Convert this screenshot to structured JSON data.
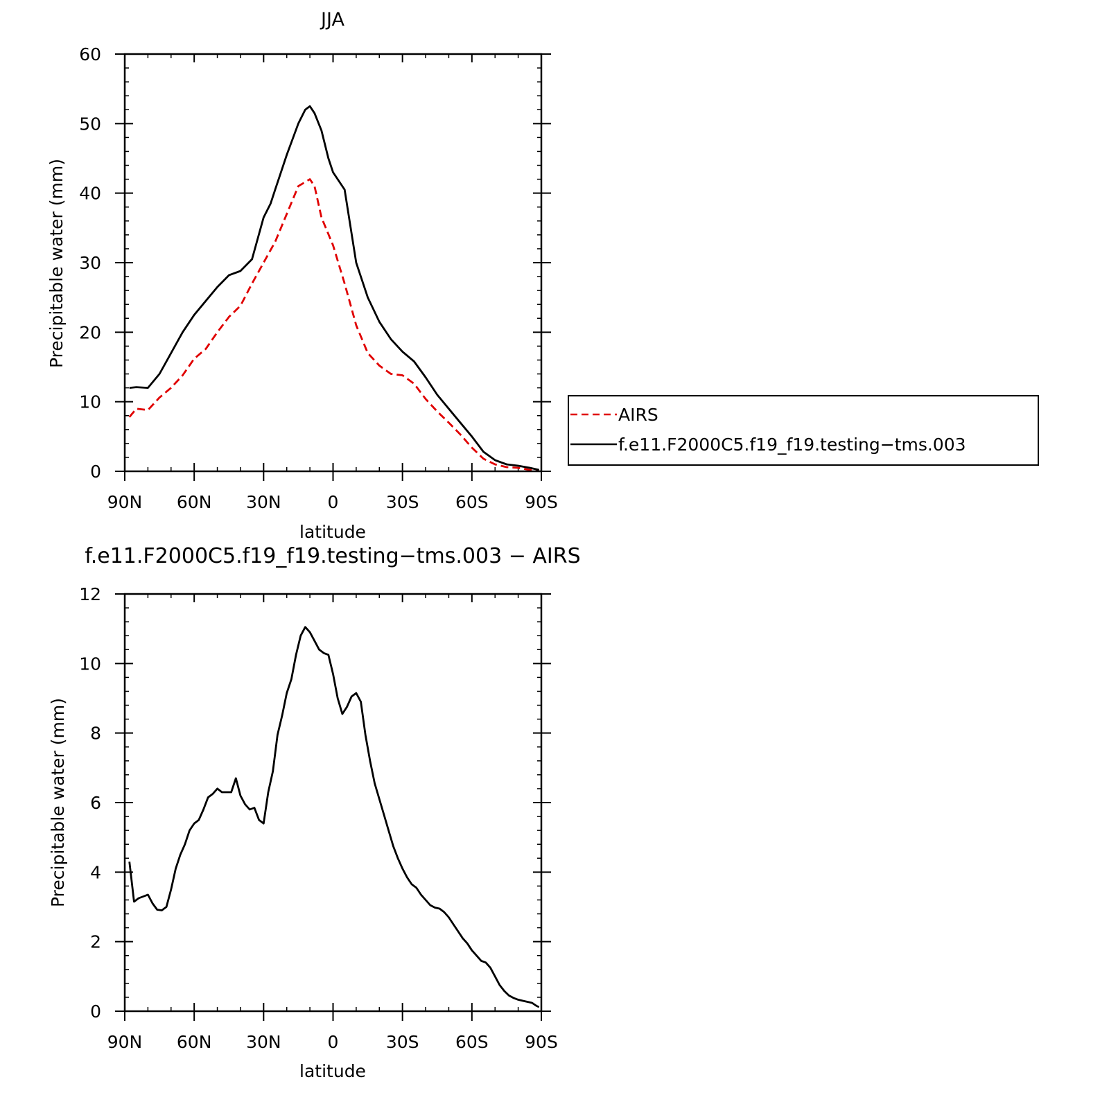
{
  "chart_data": [
    {
      "type": "line",
      "title": "JJA",
      "xlabel": "latitude",
      "ylabel": "Precipitable water (mm)",
      "xlim": [
        90,
        -90
      ],
      "ylim": [
        0,
        60
      ],
      "xticks": [
        90,
        60,
        30,
        0,
        -30,
        -60,
        -90
      ],
      "xtick_labels": [
        "90N",
        "60N",
        "30N",
        "0",
        "30S",
        "60S",
        "90S"
      ],
      "yticks": [
        0,
        10,
        20,
        30,
        40,
        50,
        60
      ],
      "ytick_labels": [
        "0",
        "10",
        "20",
        "30",
        "40",
        "50",
        "60"
      ],
      "grid": false,
      "legend_position": "right",
      "series": [
        {
          "name": "AIRS",
          "color": "#e00000",
          "style": "dashed",
          "x": [
            88,
            85,
            80,
            75,
            70,
            65,
            60,
            55,
            50,
            45,
            40,
            35,
            30,
            25,
            20,
            15,
            10,
            8,
            5,
            0,
            -5,
            -10,
            -15,
            -20,
            -25,
            -30,
            -35,
            -40,
            -45,
            -50,
            -55,
            -60,
            -65,
            -70,
            -75,
            -80,
            -85,
            -89
          ],
          "y": [
            7.8,
            9.0,
            8.8,
            10.6,
            12.0,
            13.8,
            16.2,
            17.6,
            20.0,
            22.2,
            23.8,
            27.0,
            30.0,
            33.0,
            37.0,
            41.0,
            42.0,
            41.0,
            36.5,
            32.5,
            27.0,
            21.0,
            17.0,
            15.2,
            14.0,
            13.8,
            12.6,
            10.4,
            8.6,
            7.0,
            5.3,
            3.4,
            1.8,
            1.0,
            0.6,
            0.5,
            0.2,
            0.1
          ]
        },
        {
          "name": "f.e11.F2000C5.f19_f19.testing−tms.003",
          "color": "#000000",
          "style": "solid",
          "x": [
            88,
            85,
            80,
            75,
            70,
            65,
            60,
            55,
            50,
            45,
            40,
            35,
            30,
            27,
            25,
            20,
            15,
            12,
            10,
            8,
            5,
            2,
            0,
            -5,
            -10,
            -15,
            -20,
            -25,
            -30,
            -35,
            -40,
            -45,
            -50,
            -55,
            -60,
            -65,
            -70,
            -75,
            -80,
            -85,
            -89
          ],
          "y": [
            12.0,
            12.1,
            12.0,
            14.0,
            17.0,
            20.0,
            22.5,
            24.5,
            26.5,
            28.2,
            28.8,
            30.5,
            36.5,
            38.5,
            40.5,
            45.5,
            50.0,
            52.0,
            52.5,
            51.5,
            49.0,
            45.0,
            43.0,
            40.5,
            30.0,
            25.0,
            21.5,
            19.0,
            17.2,
            15.8,
            13.5,
            11.0,
            9.0,
            7.0,
            5.0,
            2.8,
            1.6,
            1.0,
            0.8,
            0.5,
            0.2
          ]
        }
      ]
    },
    {
      "type": "line",
      "title": "f.e11.F2000C5.f19_f19.testing−tms.003 − AIRS",
      "xlabel": "latitude",
      "ylabel": "Precipitable water (mm)",
      "xlim": [
        90,
        -90
      ],
      "ylim": [
        0,
        12
      ],
      "xticks": [
        90,
        60,
        30,
        0,
        -30,
        -60,
        -90
      ],
      "xtick_labels": [
        "90N",
        "60N",
        "30N",
        "0",
        "30S",
        "60S",
        "90S"
      ],
      "yticks": [
        0,
        2,
        4,
        6,
        8,
        10,
        12
      ],
      "ytick_labels": [
        "0",
        "2",
        "4",
        "6",
        "8",
        "10",
        "12"
      ],
      "grid": false,
      "series": [
        {
          "color": "#000000",
          "style": "solid",
          "x": [
            88,
            86,
            84,
            82,
            80,
            78,
            76,
            74,
            72,
            70,
            68,
            66,
            64,
            62,
            60,
            58,
            56,
            54,
            52,
            50,
            48,
            46,
            44,
            42,
            40,
            38,
            36,
            34,
            32,
            30,
            28,
            26,
            24,
            22,
            20,
            18,
            16,
            14,
            12,
            10,
            8,
            6,
            4,
            2,
            0,
            -2,
            -4,
            -6,
            -8,
            -10,
            -12,
            -14,
            -16,
            -18,
            -20,
            -22,
            -24,
            -26,
            -28,
            -30,
            -32,
            -34,
            -36,
            -38,
            -40,
            -42,
            -44,
            -46,
            -48,
            -50,
            -52,
            -54,
            -56,
            -58,
            -60,
            -62,
            -64,
            -66,
            -68,
            -70,
            -72,
            -74,
            -76,
            -78,
            -80,
            -82,
            -84,
            -86,
            -88,
            -89
          ],
          "y": [
            4.3,
            3.15,
            3.25,
            3.3,
            3.35,
            3.1,
            2.92,
            2.9,
            3.0,
            3.5,
            4.1,
            4.5,
            4.8,
            5.2,
            5.4,
            5.5,
            5.8,
            6.15,
            6.25,
            6.4,
            6.3,
            6.3,
            6.3,
            6.7,
            6.2,
            5.95,
            5.8,
            5.85,
            5.5,
            5.4,
            6.3,
            6.9,
            7.95,
            8.5,
            9.15,
            9.55,
            10.25,
            10.8,
            11.05,
            10.9,
            10.65,
            10.4,
            10.3,
            10.25,
            9.7,
            9.0,
            8.55,
            8.75,
            9.05,
            9.15,
            8.9,
            7.95,
            7.2,
            6.55,
            6.1,
            5.65,
            5.2,
            4.75,
            4.4,
            4.1,
            3.85,
            3.65,
            3.55,
            3.35,
            3.2,
            3.05,
            2.98,
            2.95,
            2.85,
            2.7,
            2.5,
            2.3,
            2.1,
            1.95,
            1.75,
            1.6,
            1.45,
            1.4,
            1.25,
            1.0,
            0.75,
            0.58,
            0.45,
            0.38,
            0.33,
            0.3,
            0.27,
            0.24,
            0.15,
            0.12
          ]
        }
      ]
    }
  ]
}
